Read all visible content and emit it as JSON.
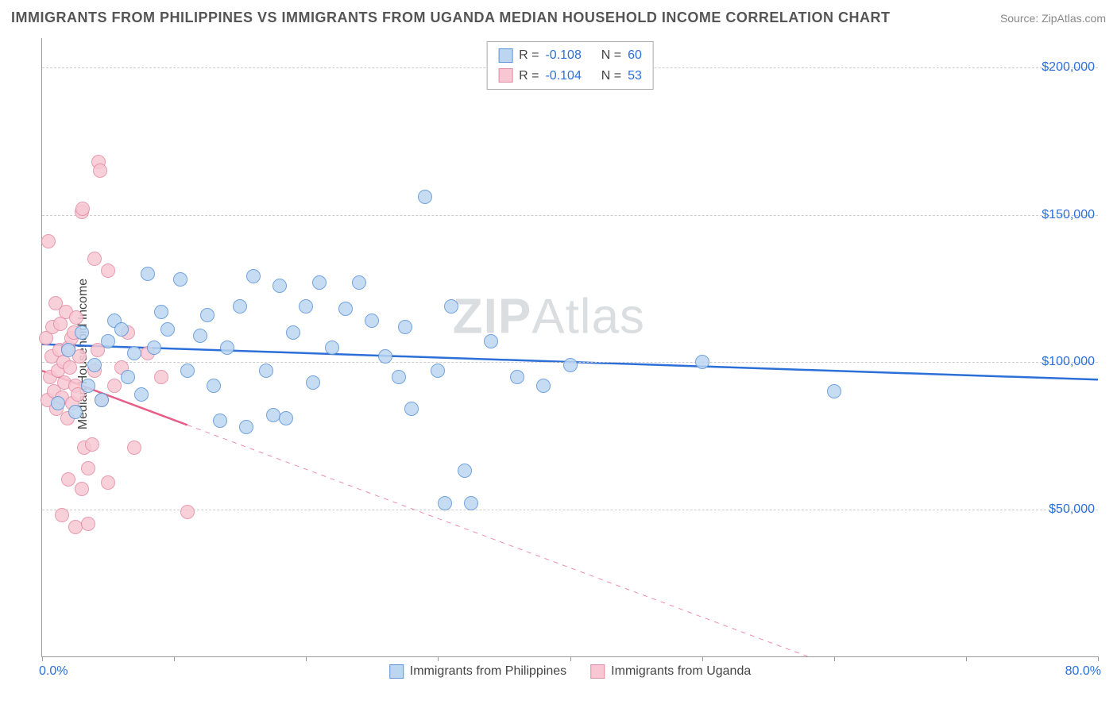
{
  "title": "IMMIGRANTS FROM PHILIPPINES VS IMMIGRANTS FROM UGANDA MEDIAN HOUSEHOLD INCOME CORRELATION CHART",
  "source": "Source: ZipAtlas.com",
  "ylabel": "Median Household Income",
  "watermark_a": "ZIP",
  "watermark_b": "Atlas",
  "chart": {
    "type": "scatter",
    "x_min": 0,
    "x_max": 80,
    "y_min": 0,
    "y_max": 210000,
    "x_tick_step": 10,
    "x_label_min": "0.0%",
    "x_label_max": "80.0%",
    "y_ticks": [
      50000,
      100000,
      150000,
      200000
    ],
    "y_tick_labels": [
      "$50,000",
      "$100,000",
      "$150,000",
      "$200,000"
    ],
    "grid_color": "#cccccc",
    "background_color": "#ffffff",
    "axis_color": "#999999",
    "tick_label_color": "#2d6fd8",
    "marker_radius": 9,
    "marker_border_width": 1.5,
    "line_width": 2.5
  },
  "series": [
    {
      "name": "Immigrants from Philippines",
      "fill": "#bcd6f2",
      "stroke": "#5b94d6",
      "line_color": "#2d6fd8",
      "R_label": "R =",
      "R": "-0.108",
      "N_label": "N =",
      "N": "60",
      "trend": {
        "x1": 0,
        "y1": 106000,
        "x2": 80,
        "y2": 94000,
        "solid_to_x": 80
      },
      "points": [
        [
          1.2,
          86000
        ],
        [
          2.0,
          104000
        ],
        [
          2.5,
          83000
        ],
        [
          3.0,
          110000
        ],
        [
          3.5,
          92000
        ],
        [
          4.0,
          99000
        ],
        [
          4.5,
          87000
        ],
        [
          5.0,
          107000
        ],
        [
          5.5,
          114000
        ],
        [
          6.0,
          111000
        ],
        [
          6.5,
          95000
        ],
        [
          7.0,
          103000
        ],
        [
          7.5,
          89000
        ],
        [
          8.0,
          130000
        ],
        [
          8.5,
          105000
        ],
        [
          9.0,
          117000
        ],
        [
          9.5,
          111000
        ],
        [
          10.5,
          128000
        ],
        [
          11.0,
          97000
        ],
        [
          12.0,
          109000
        ],
        [
          12.5,
          116000
        ],
        [
          13.0,
          92000
        ],
        [
          13.5,
          80000
        ],
        [
          14.0,
          105000
        ],
        [
          15.0,
          119000
        ],
        [
          15.5,
          78000
        ],
        [
          16.0,
          129000
        ],
        [
          17.0,
          97000
        ],
        [
          17.5,
          82000
        ],
        [
          18.0,
          126000
        ],
        [
          18.5,
          81000
        ],
        [
          19.0,
          110000
        ],
        [
          20.0,
          119000
        ],
        [
          20.5,
          93000
        ],
        [
          21.0,
          127000
        ],
        [
          22.0,
          105000
        ],
        [
          23.0,
          118000
        ],
        [
          24.0,
          127000
        ],
        [
          25.0,
          114000
        ],
        [
          26.0,
          102000
        ],
        [
          27.0,
          95000
        ],
        [
          27.5,
          112000
        ],
        [
          28.0,
          84000
        ],
        [
          29.0,
          156000
        ],
        [
          30.0,
          97000
        ],
        [
          30.5,
          52000
        ],
        [
          31.0,
          119000
        ],
        [
          32.0,
          63000
        ],
        [
          32.5,
          52000
        ],
        [
          34.0,
          107000
        ],
        [
          36.0,
          95000
        ],
        [
          38.0,
          92000
        ],
        [
          40.0,
          99000
        ],
        [
          50.0,
          100000
        ],
        [
          60.0,
          90000
        ]
      ]
    },
    {
      "name": "Immigrants from Uganda",
      "fill": "#f7c8d3",
      "stroke": "#e38ba2",
      "line_color": "#e75e87",
      "R_label": "R =",
      "R": "-0.104",
      "N_label": "N =",
      "N": "53",
      "trend": {
        "x1": 0,
        "y1": 97000,
        "x2": 58,
        "y2": 0,
        "solid_to_x": 11
      },
      "points": [
        [
          0.3,
          108000
        ],
        [
          0.4,
          87000
        ],
        [
          0.5,
          141000
        ],
        [
          0.6,
          95000
        ],
        [
          0.7,
          102000
        ],
        [
          0.8,
          112000
        ],
        [
          0.9,
          90000
        ],
        [
          1.0,
          120000
        ],
        [
          1.1,
          84000
        ],
        [
          1.2,
          97000
        ],
        [
          1.3,
          104000
        ],
        [
          1.4,
          113000
        ],
        [
          1.5,
          88000
        ],
        [
          1.6,
          100000
        ],
        [
          1.7,
          93000
        ],
        [
          1.8,
          117000
        ],
        [
          1.9,
          81000
        ],
        [
          2.0,
          105000
        ],
        [
          2.1,
          98000
        ],
        [
          2.2,
          108000
        ],
        [
          2.3,
          86000
        ],
        [
          2.4,
          110000
        ],
        [
          2.5,
          92000
        ],
        [
          2.6,
          115000
        ],
        [
          2.7,
          89000
        ],
        [
          2.8,
          102000
        ],
        [
          3.0,
          151000
        ],
        [
          3.1,
          152000
        ],
        [
          3.2,
          71000
        ],
        [
          3.0,
          57000
        ],
        [
          2.0,
          60000
        ],
        [
          2.5,
          44000
        ],
        [
          1.5,
          48000
        ],
        [
          3.5,
          64000
        ],
        [
          3.8,
          72000
        ],
        [
          4.0,
          97000
        ],
        [
          4.2,
          104000
        ],
        [
          4.5,
          87000
        ],
        [
          4.3,
          168000
        ],
        [
          4.4,
          165000
        ],
        [
          4.0,
          135000
        ],
        [
          5.0,
          131000
        ],
        [
          5.5,
          92000
        ],
        [
          5.0,
          59000
        ],
        [
          6.0,
          98000
        ],
        [
          6.5,
          110000
        ],
        [
          7.0,
          71000
        ],
        [
          8.0,
          103000
        ],
        [
          9.0,
          95000
        ],
        [
          11.0,
          49000
        ],
        [
          3.5,
          45000
        ]
      ]
    }
  ]
}
